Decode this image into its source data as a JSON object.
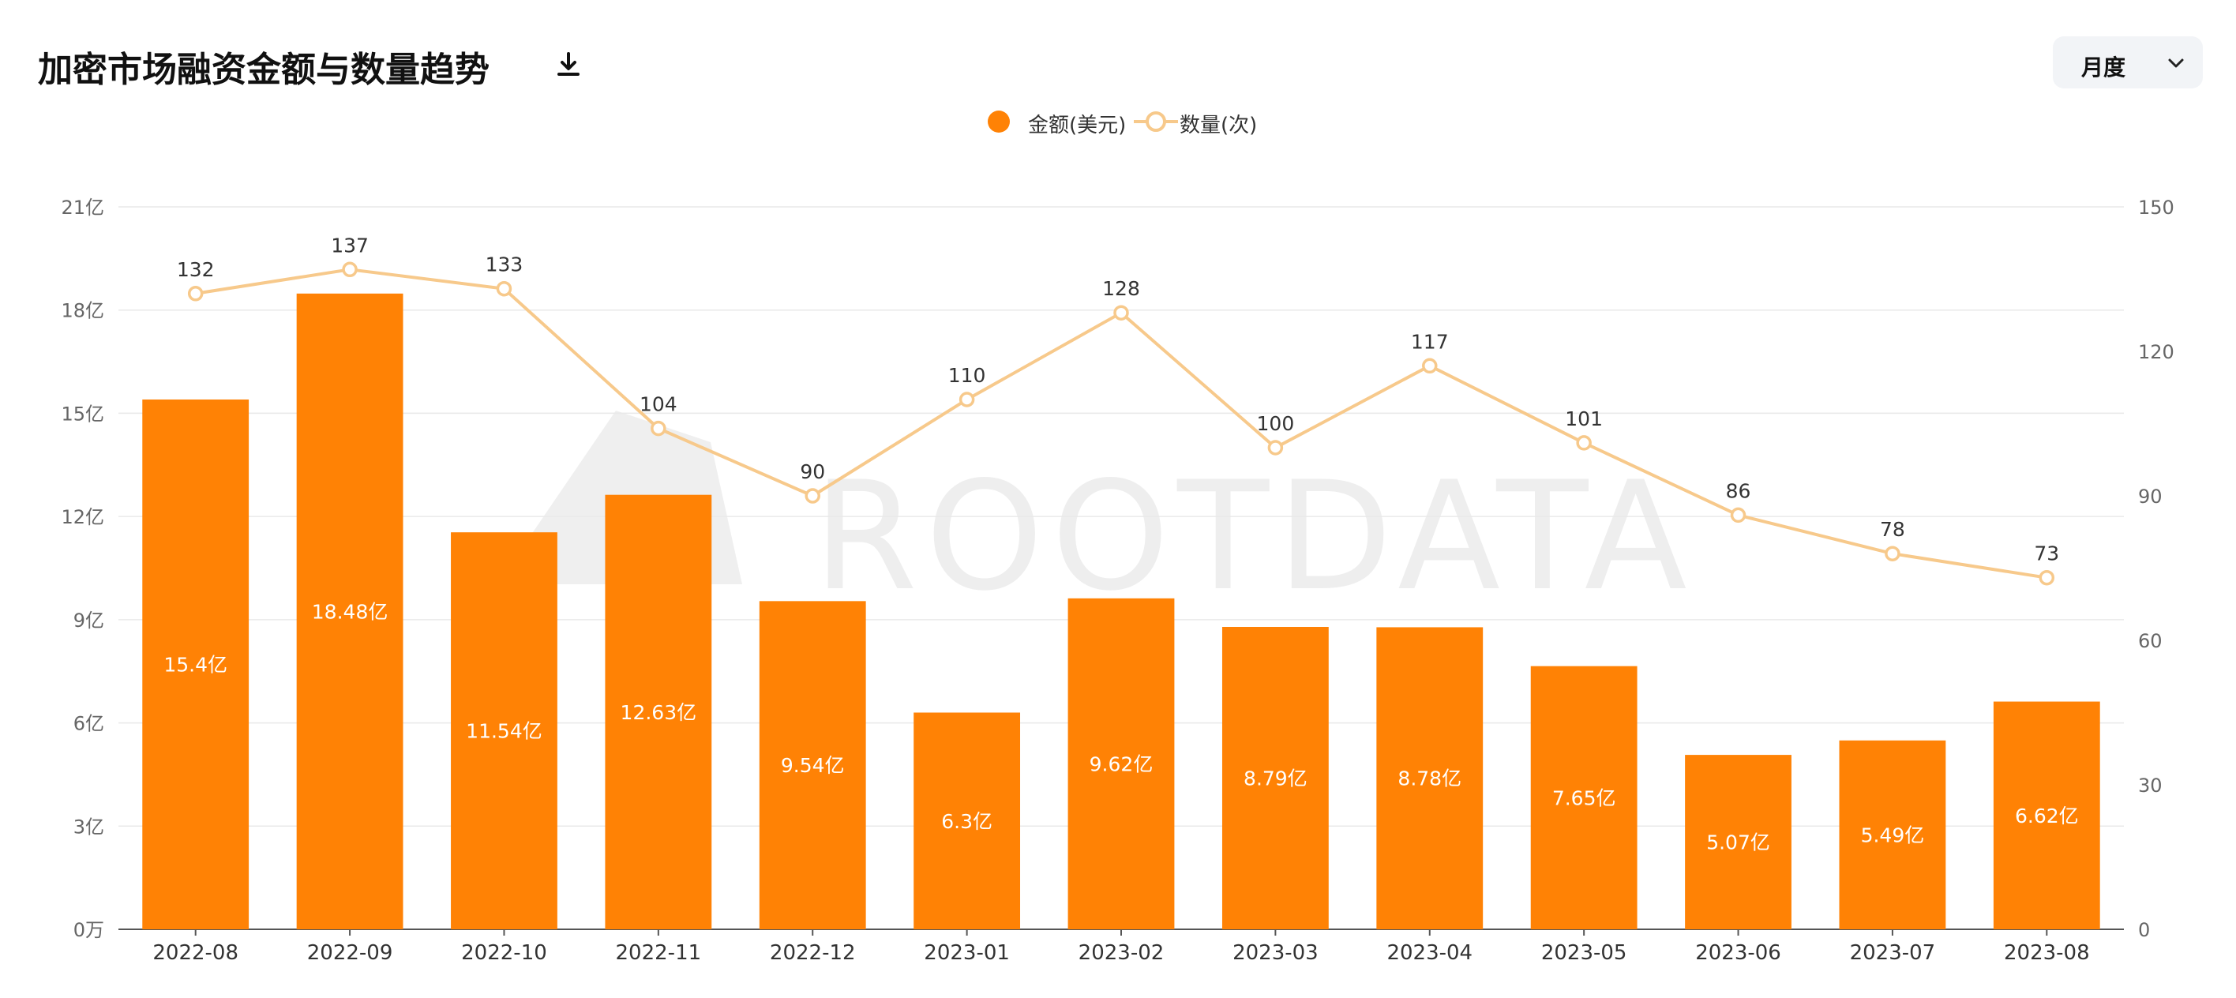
{
  "header": {
    "title": "加密市场融资金额与数量趋势",
    "period_label": "月度"
  },
  "icons": {
    "download": "download-icon",
    "dropdown": "chevron-down-icon"
  },
  "watermark": "ROOTDATA",
  "colors": {
    "bar": "#ff8205",
    "line": "#f7c98b",
    "grid": "#e9e9e9"
  },
  "chart_data": {
    "type": "bar",
    "categories": [
      "2022-08",
      "2022-09",
      "2022-10",
      "2022-11",
      "2022-12",
      "2023-01",
      "2023-02",
      "2023-03",
      "2023-04",
      "2023-05",
      "2023-06",
      "2023-07",
      "2023-08"
    ],
    "legend_placement": "top-center",
    "grid": true,
    "left_axis": {
      "ticks": [
        "0万",
        "3亿",
        "6亿",
        "9亿",
        "12亿",
        "15亿",
        "18亿",
        "21亿"
      ],
      "ylim": [
        0,
        21
      ]
    },
    "right_axis": {
      "ticks": [
        "0",
        "30",
        "60",
        "90",
        "120",
        "150"
      ],
      "ylim": [
        0,
        150
      ]
    },
    "series": [
      {
        "name": "金额(美元)",
        "type": "bar",
        "axis": "left",
        "values": [
          15.4,
          18.48,
          11.54,
          12.63,
          9.54,
          6.3,
          9.62,
          8.79,
          8.78,
          7.65,
          5.07,
          5.49,
          6.62
        ],
        "labels": [
          "15.4亿",
          "18.48亿",
          "11.54亿",
          "12.63亿",
          "9.54亿",
          "6.3亿",
          "9.62亿",
          "8.79亿",
          "8.78亿",
          "7.65亿",
          "5.07亿",
          "5.49亿",
          "6.62亿"
        ]
      },
      {
        "name": "数量(次)",
        "type": "line",
        "axis": "right",
        "values": [
          132,
          137,
          133,
          104,
          90,
          110,
          128,
          100,
          117,
          101,
          86,
          78,
          73
        ]
      }
    ]
  }
}
